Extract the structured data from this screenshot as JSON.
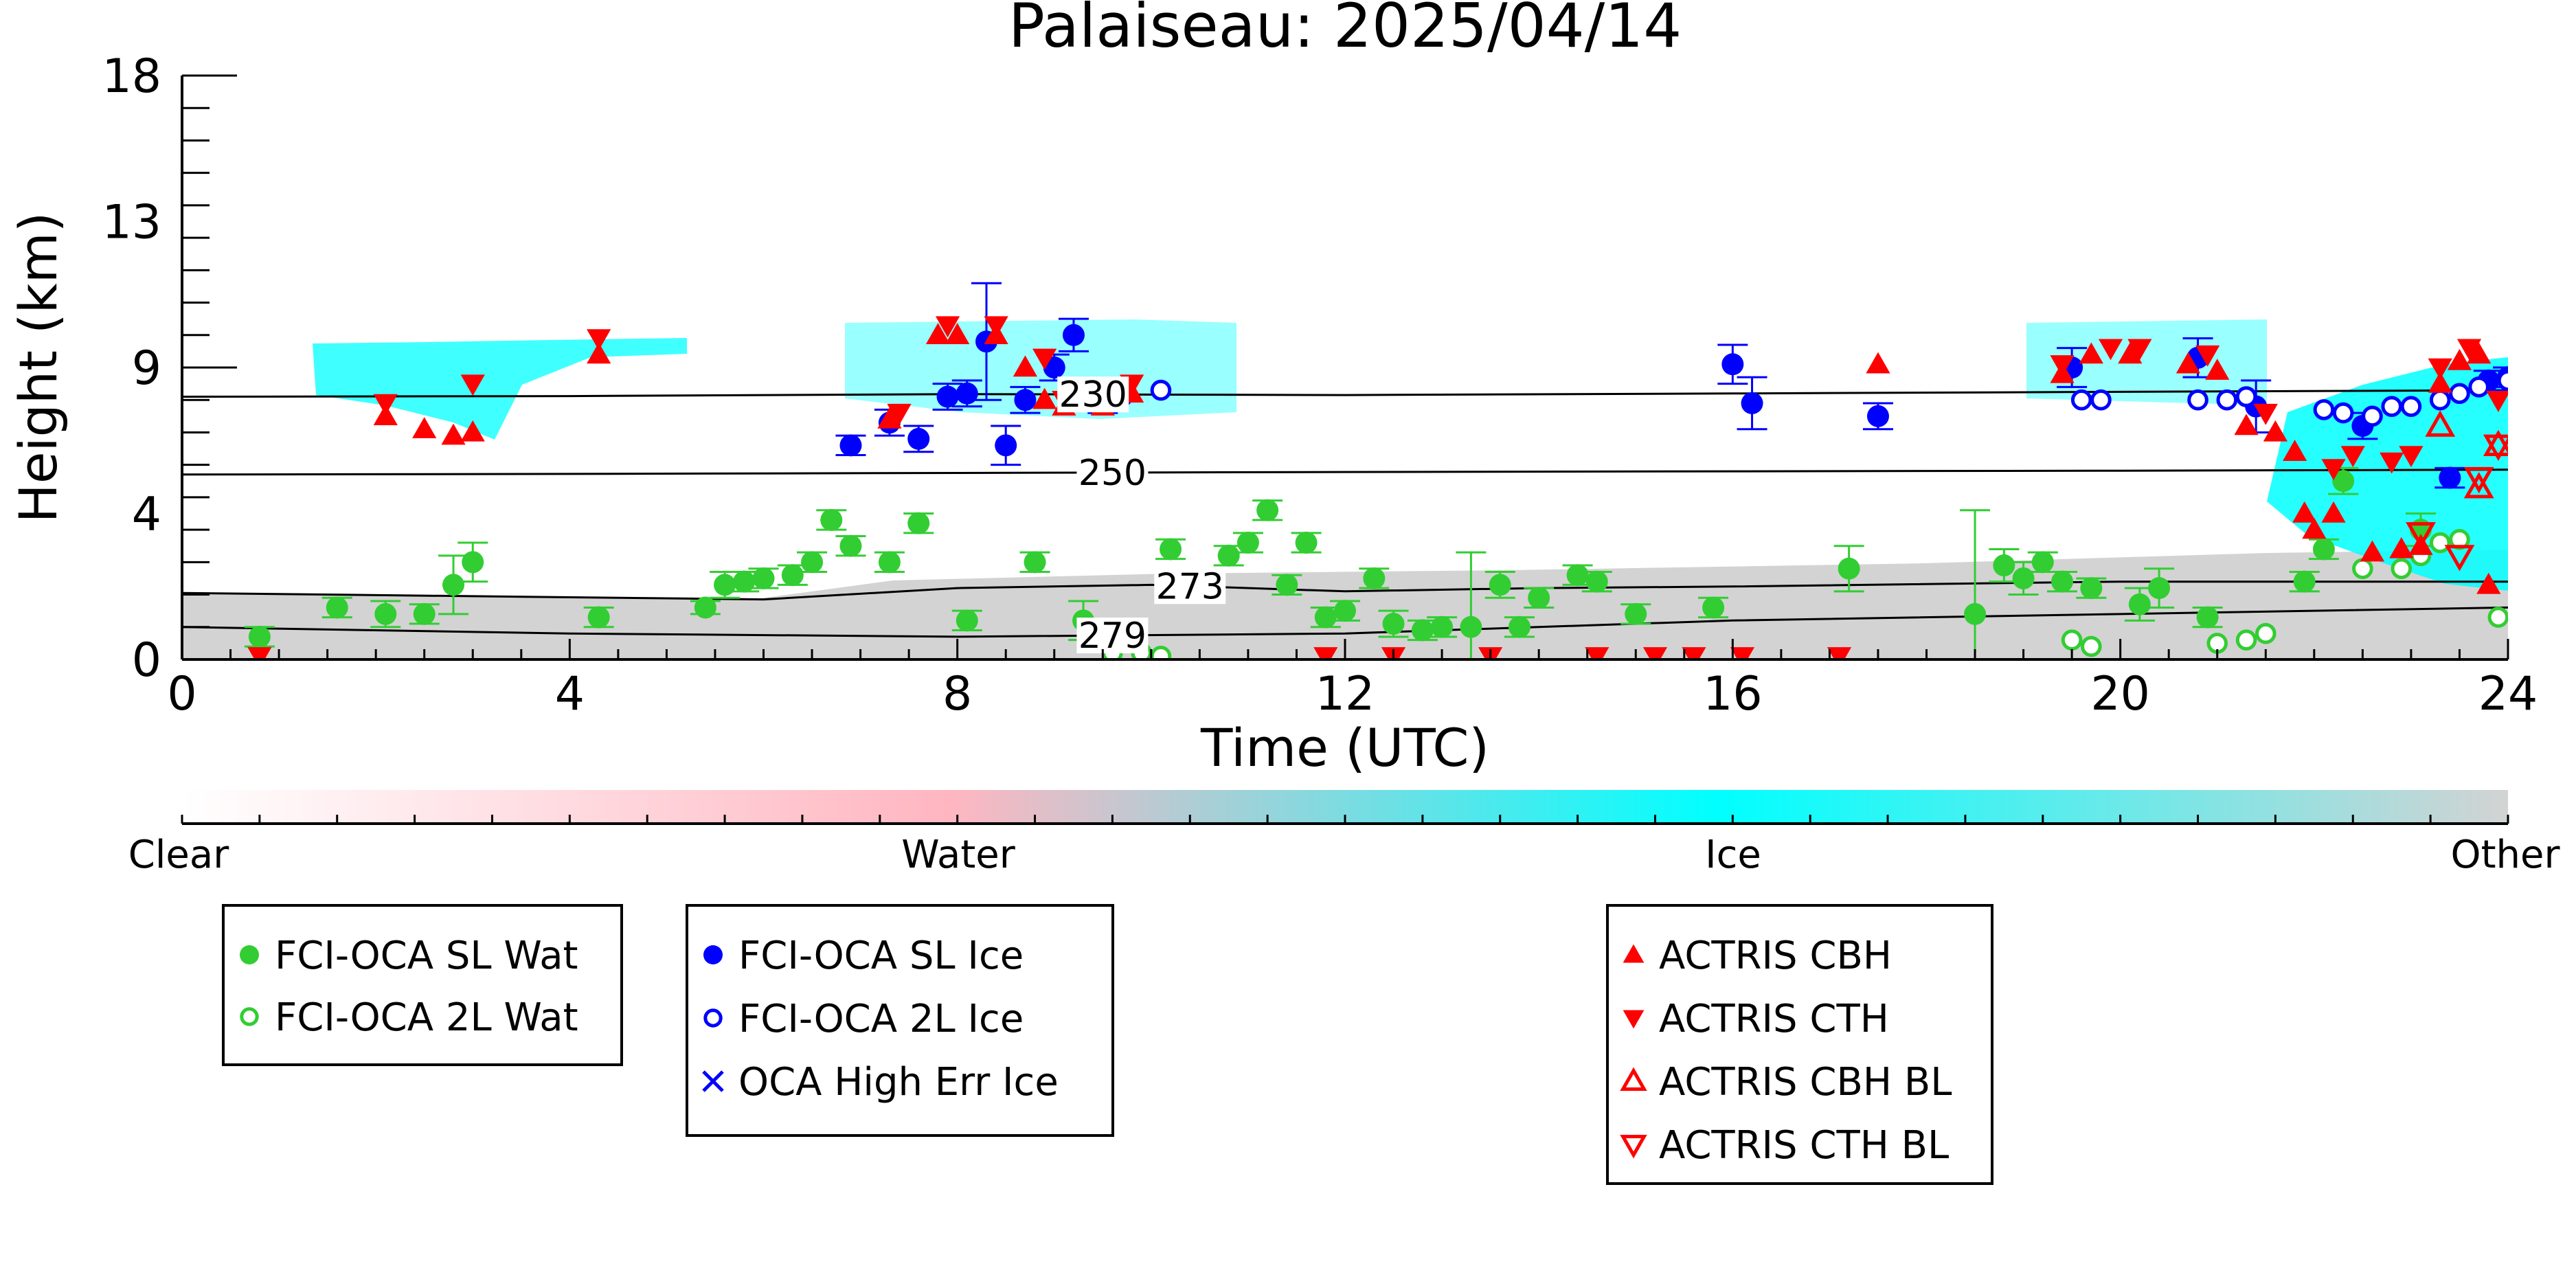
{
  "chart_data": {
    "type": "scatter",
    "title": "Palaiseau: 2025/04/14",
    "xlabel": "Time (UTC)",
    "ylabel": "Height (km)",
    "xlim": [
      0,
      24
    ],
    "ylim": [
      0,
      18
    ],
    "xticks": [
      "0",
      "4",
      "8",
      "12",
      "16",
      "20",
      "24"
    ],
    "yticks": [
      "0",
      "4",
      "9",
      "13",
      "18"
    ],
    "colorbar": {
      "labels": [
        "Clear",
        "Water",
        "Ice",
        "Other"
      ],
      "colors": [
        "#ffffff",
        "#ffb6c1",
        "#00ffff",
        "#d3d3d3"
      ]
    },
    "contours": [
      {
        "label": "230",
        "label_x": 9.4,
        "points": [
          [
            0,
            8.1
          ],
          [
            4,
            8.12
          ],
          [
            8,
            8.18
          ],
          [
            12,
            8.15
          ],
          [
            16,
            8.2
          ],
          [
            20,
            8.25
          ],
          [
            24,
            8.3
          ]
        ]
      },
      {
        "label": "250",
        "label_x": 9.6,
        "points": [
          [
            0,
            5.7
          ],
          [
            4,
            5.72
          ],
          [
            8,
            5.75
          ],
          [
            12,
            5.78
          ],
          [
            16,
            5.8
          ],
          [
            20,
            5.82
          ],
          [
            24,
            5.85
          ]
        ]
      },
      {
        "label": "273",
        "label_x": 10.4,
        "points": [
          [
            0,
            2.05
          ],
          [
            3,
            1.95
          ],
          [
            6,
            1.85
          ],
          [
            8,
            2.2
          ],
          [
            10,
            2.3
          ],
          [
            12,
            2.1
          ],
          [
            14,
            2.2
          ],
          [
            16,
            2.25
          ],
          [
            20,
            2.4
          ],
          [
            24,
            2.4
          ]
        ]
      },
      {
        "label": "279",
        "label_x": 9.6,
        "points": [
          [
            0,
            1.0
          ],
          [
            4,
            0.8
          ],
          [
            8,
            0.7
          ],
          [
            12,
            0.8
          ],
          [
            16,
            1.2
          ],
          [
            20,
            1.4
          ],
          [
            24,
            1.6
          ]
        ]
      }
    ],
    "series": [
      {
        "name": "FCI-OCA SL Wat",
        "marker": "filled-circle",
        "color": "#32cd32",
        "points": [
          [
            0.8,
            0.7
          ],
          [
            1.6,
            1.6
          ],
          [
            2.1,
            1.4
          ],
          [
            2.5,
            1.4
          ],
          [
            2.8,
            2.3
          ],
          [
            3.0,
            3.0
          ],
          [
            4.3,
            1.3
          ],
          [
            5.4,
            1.6
          ],
          [
            5.6,
            2.3
          ],
          [
            5.8,
            2.4
          ],
          [
            6.0,
            2.5
          ],
          [
            6.3,
            2.6
          ],
          [
            6.5,
            3.0
          ],
          [
            6.7,
            4.3
          ],
          [
            6.9,
            3.5
          ],
          [
            7.3,
            3.0
          ],
          [
            7.6,
            4.2
          ],
          [
            8.1,
            1.2
          ],
          [
            8.8,
            3.0
          ],
          [
            9.3,
            1.2
          ],
          [
            10.2,
            3.4
          ],
          [
            10.8,
            3.2
          ],
          [
            11.0,
            3.6
          ],
          [
            11.2,
            4.6
          ],
          [
            11.4,
            2.3
          ],
          [
            11.6,
            3.6
          ],
          [
            11.8,
            1.3
          ],
          [
            12.0,
            1.5
          ],
          [
            12.3,
            2.5
          ],
          [
            12.5,
            1.1
          ],
          [
            12.8,
            0.9
          ],
          [
            13.0,
            1.0
          ],
          [
            13.3,
            1.0
          ],
          [
            13.6,
            2.3
          ],
          [
            13.8,
            1.0
          ],
          [
            14.0,
            1.9
          ],
          [
            14.4,
            2.6
          ],
          [
            14.6,
            2.4
          ],
          [
            15.0,
            1.4
          ],
          [
            15.8,
            1.6
          ],
          [
            17.2,
            2.8
          ],
          [
            18.5,
            1.4
          ],
          [
            18.8,
            2.9
          ],
          [
            19.0,
            2.5
          ],
          [
            19.2,
            3.0
          ],
          [
            19.4,
            2.4
          ],
          [
            19.7,
            2.2
          ],
          [
            20.2,
            1.7
          ],
          [
            20.4,
            2.2
          ],
          [
            20.9,
            1.3
          ],
          [
            21.9,
            2.4
          ],
          [
            22.1,
            3.4
          ],
          [
            22.3,
            5.5
          ],
          [
            23.1,
            4.0
          ]
        ],
        "errors": [
          0.3,
          0.3,
          0.4,
          0.3,
          0.9,
          0.6,
          0.3,
          0.2,
          0.4,
          0.3,
          0.3,
          0.3,
          0.3,
          0.3,
          0.3,
          0.3,
          0.3,
          0.3,
          0.3,
          0.6,
          0.3,
          0.3,
          0.3,
          0.3,
          0.3,
          0.3,
          0.3,
          0.3,
          0.3,
          0.4,
          0.3,
          0.3,
          2.3,
          0.4,
          0.3,
          0.3,
          0.3,
          0.3,
          0.3,
          0.3,
          0.7,
          3.2,
          0.5,
          0.5,
          0.3,
          0.3,
          0.3,
          0.5,
          0.6,
          0.3,
          0.3,
          0.3,
          0.4,
          0.5
        ]
      },
      {
        "name": "FCI-OCA 2L Wat",
        "marker": "open-circle",
        "color": "#32cd32",
        "points": [
          [
            9.6,
            0.2
          ],
          [
            9.9,
            0.2
          ],
          [
            10.1,
            0.1
          ],
          [
            19.5,
            0.6
          ],
          [
            19.7,
            0.4
          ],
          [
            21.0,
            0.5
          ],
          [
            21.3,
            0.6
          ],
          [
            21.5,
            0.8
          ],
          [
            22.5,
            2.8
          ],
          [
            22.9,
            2.8
          ],
          [
            23.1,
            3.2
          ],
          [
            23.3,
            3.6
          ],
          [
            23.5,
            3.7
          ],
          [
            23.9,
            1.3
          ]
        ]
      },
      {
        "name": "FCI-OCA SL Ice",
        "marker": "filled-circle",
        "color": "#0000ff",
        "points": [
          [
            6.9,
            6.6
          ],
          [
            7.3,
            7.3
          ],
          [
            7.6,
            6.8
          ],
          [
            7.9,
            8.1
          ],
          [
            8.1,
            8.2
          ],
          [
            8.3,
            9.8
          ],
          [
            8.5,
            6.6
          ],
          [
            8.7,
            8.0
          ],
          [
            9.0,
            9.0
          ],
          [
            9.2,
            10.0
          ],
          [
            9.5,
            8.0
          ],
          [
            16.0,
            9.1
          ],
          [
            16.2,
            7.9
          ],
          [
            17.5,
            7.5
          ],
          [
            19.5,
            9.0
          ],
          [
            20.8,
            9.3
          ],
          [
            21.4,
            7.8
          ],
          [
            22.5,
            7.2
          ],
          [
            23.4,
            5.6
          ],
          [
            23.8,
            8.6
          ],
          [
            24.0,
            8.7
          ]
        ],
        "errors": [
          0.3,
          0.4,
          0.4,
          0.4,
          0.4,
          1.8,
          0.6,
          0.4,
          0.4,
          0.5,
          0.4,
          0.6,
          0.8,
          0.4,
          0.6,
          0.6,
          0.8,
          0.4,
          0.3,
          0.3,
          0.3
        ]
      },
      {
        "name": "FCI-OCA 2L Ice",
        "marker": "open-circle",
        "color": "#0000ff",
        "points": [
          [
            9.7,
            8.1
          ],
          [
            10.1,
            8.3
          ],
          [
            19.6,
            8.0
          ],
          [
            19.8,
            8.0
          ],
          [
            20.8,
            8.0
          ],
          [
            21.1,
            8.0
          ],
          [
            21.3,
            8.1
          ],
          [
            22.1,
            7.7
          ],
          [
            22.3,
            7.6
          ],
          [
            22.6,
            7.5
          ],
          [
            22.8,
            7.8
          ],
          [
            23.0,
            7.8
          ],
          [
            23.3,
            8.0
          ],
          [
            23.5,
            8.2
          ],
          [
            23.7,
            8.4
          ],
          [
            24.0,
            8.6
          ]
        ]
      },
      {
        "name": "OCA High Err Ice",
        "marker": "x",
        "color": "#0000ff",
        "points": []
      },
      {
        "name": "ACTRIS CBH",
        "marker": "filled-up-triangle",
        "color": "#ff0000",
        "points": [
          [
            2.1,
            7.5
          ],
          [
            2.5,
            7.1
          ],
          [
            2.8,
            6.9
          ],
          [
            3.0,
            7.0
          ],
          [
            4.3,
            9.4
          ],
          [
            7.3,
            7.4
          ],
          [
            7.8,
            10.0
          ],
          [
            8.0,
            10.0
          ],
          [
            8.4,
            10.0
          ],
          [
            8.7,
            9.0
          ],
          [
            8.9,
            8.0
          ],
          [
            9.1,
            7.8
          ],
          [
            9.5,
            7.8
          ],
          [
            9.8,
            8.2
          ],
          [
            17.5,
            9.1
          ],
          [
            19.4,
            8.8
          ],
          [
            19.7,
            9.4
          ],
          [
            20.1,
            9.4
          ],
          [
            20.7,
            9.1
          ],
          [
            21.0,
            8.9
          ],
          [
            21.3,
            7.2
          ],
          [
            21.6,
            7.0
          ],
          [
            21.8,
            6.4
          ],
          [
            21.9,
            4.5
          ],
          [
            22.0,
            4.0
          ],
          [
            22.2,
            4.5
          ],
          [
            22.6,
            3.3
          ],
          [
            22.9,
            3.4
          ],
          [
            23.1,
            3.5
          ],
          [
            23.3,
            8.5
          ],
          [
            23.5,
            9.2
          ],
          [
            23.7,
            9.4
          ],
          [
            23.8,
            2.3
          ]
        ]
      },
      {
        "name": "ACTRIS CTH",
        "marker": "filled-down-triangle",
        "color": "#ff0000",
        "points": [
          [
            0.8,
            0.1
          ],
          [
            2.1,
            7.9
          ],
          [
            3.0,
            8.5
          ],
          [
            4.3,
            9.9
          ],
          [
            7.4,
            7.6
          ],
          [
            7.9,
            10.3
          ],
          [
            8.4,
            10.3
          ],
          [
            8.9,
            9.3
          ],
          [
            9.1,
            8.0
          ],
          [
            9.8,
            8.5
          ],
          [
            11.8,
            0.1
          ],
          [
            12.5,
            0.1
          ],
          [
            13.5,
            0.1
          ],
          [
            14.6,
            0.1
          ],
          [
            15.2,
            0.1
          ],
          [
            15.6,
            0.1
          ],
          [
            16.1,
            0.1
          ],
          [
            17.1,
            0.1
          ],
          [
            19.4,
            9.1
          ],
          [
            19.9,
            9.6
          ],
          [
            20.2,
            9.6
          ],
          [
            20.9,
            9.4
          ],
          [
            21.5,
            7.6
          ],
          [
            22.2,
            5.9
          ],
          [
            22.4,
            6.3
          ],
          [
            22.8,
            6.1
          ],
          [
            23.0,
            6.3
          ],
          [
            23.3,
            9.0
          ],
          [
            23.6,
            9.6
          ],
          [
            23.9,
            8.0
          ]
        ]
      },
      {
        "name": "ACTRIS CBH BL",
        "marker": "open-up-triangle",
        "color": "#ff0000",
        "points": [
          [
            23.3,
            7.2
          ],
          [
            23.7,
            5.3
          ],
          [
            23.9,
            6.6
          ]
        ]
      },
      {
        "name": "ACTRIS CTH BL",
        "marker": "open-down-triangle",
        "color": "#ff0000",
        "points": [
          [
            23.1,
            3.9
          ],
          [
            23.5,
            3.2
          ],
          [
            23.7,
            5.6
          ],
          [
            23.9,
            6.6
          ]
        ]
      }
    ],
    "legends": [
      {
        "entries": [
          0,
          1
        ]
      },
      {
        "entries": [
          2,
          3,
          4
        ]
      },
      {
        "entries": [
          5,
          6,
          7,
          8
        ]
      }
    ]
  }
}
